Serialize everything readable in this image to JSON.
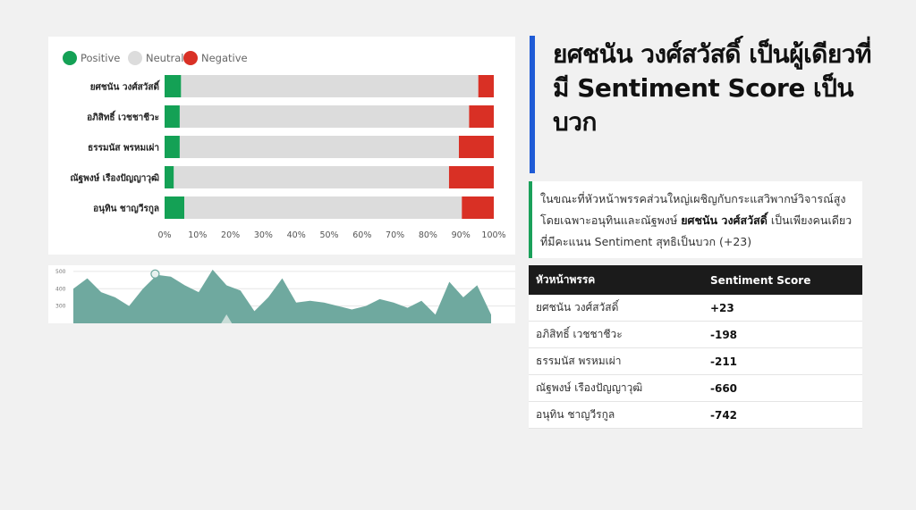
{
  "headline": "ยศชนัน วงศ์สวัสดิ์ เป็นผู้เดียวที่มี Sentiment Score เป็นบวก",
  "summary": {
    "before": "ในขณะที่หัวหน้าพรรคส่วนใหญ่เผชิญกับกระแสวิพากษ์วิจารณ์สูง โดยเฉพาะอนุทินและณัฐพงษ์ ",
    "highlight": "ยศชนัน วงศ์สวัสดิ์",
    "after": " เป็นเพียงคนเดียวที่มีคะแนน Sentiment สุทธิเป็นบวก (+23)"
  },
  "table": {
    "headers": [
      "หัวหน้าพรรค",
      "Sentiment Score"
    ],
    "rows": [
      {
        "name": "ยศชนัน วงศ์สวัสดิ์",
        "score": "+23"
      },
      {
        "name": "อภิสิทธิ์ เวชชาชีวะ",
        "score": "-198"
      },
      {
        "name": "ธรรมนัส พรหมเผ่า",
        "score": "-211"
      },
      {
        "name": "ณัฐพงษ์ เรืองปัญญาวุฒิ",
        "score": "-660"
      },
      {
        "name": "อนุทิน ชาญวีรกูล",
        "score": "-742"
      }
    ]
  },
  "colors": {
    "positive": "#14a155",
    "neutral": "#dcdcdc",
    "negative": "#d93025",
    "accent_blue": "#1f5bd6",
    "area_fill": "#6fa99f",
    "header_bg": "#1b1b1b"
  },
  "chart_data": [
    {
      "type": "bar",
      "orientation": "horizontal",
      "stacked": "percent",
      "categories": [
        "ยศชนัน วงศ์สวัสดิ์",
        "อภิสิทธิ์ เวชชาชีวะ",
        "ธรรมนัส พรหมเผ่า",
        "ณัฐพงษ์ เรืองปัญญาวุฒิ",
        "อนุทิน ชาญวีรกูล"
      ],
      "series": [
        {
          "name": "Positive",
          "values": [
            5,
            4.6,
            4.6,
            2.8,
            6
          ]
        },
        {
          "name": "Neutral",
          "values": [
            90.3,
            87.9,
            84.8,
            83.6,
            84.3
          ]
        },
        {
          "name": "Negative",
          "values": [
            4.7,
            7.5,
            10.6,
            13.6,
            9.7
          ]
        }
      ],
      "xlim": [
        0,
        100
      ],
      "xticks": [
        "0%",
        "10%",
        "20%",
        "30%",
        "40%",
        "50%",
        "60%",
        "70%",
        "80%",
        "90%",
        "100%"
      ],
      "legend": "top-left",
      "grid": false
    },
    {
      "type": "area",
      "y_ticks": [
        "500",
        "400",
        "300"
      ],
      "values": [
        400,
        460,
        380,
        350,
        300,
        400,
        480,
        470,
        420,
        380,
        510,
        420,
        390,
        270,
        350,
        460,
        320,
        330,
        320,
        300,
        280,
        300,
        340,
        320,
        290,
        330,
        250,
        440,
        350,
        420,
        250
      ],
      "ylim": [
        200,
        520
      ],
      "grid": true,
      "note_marker": true
    }
  ]
}
